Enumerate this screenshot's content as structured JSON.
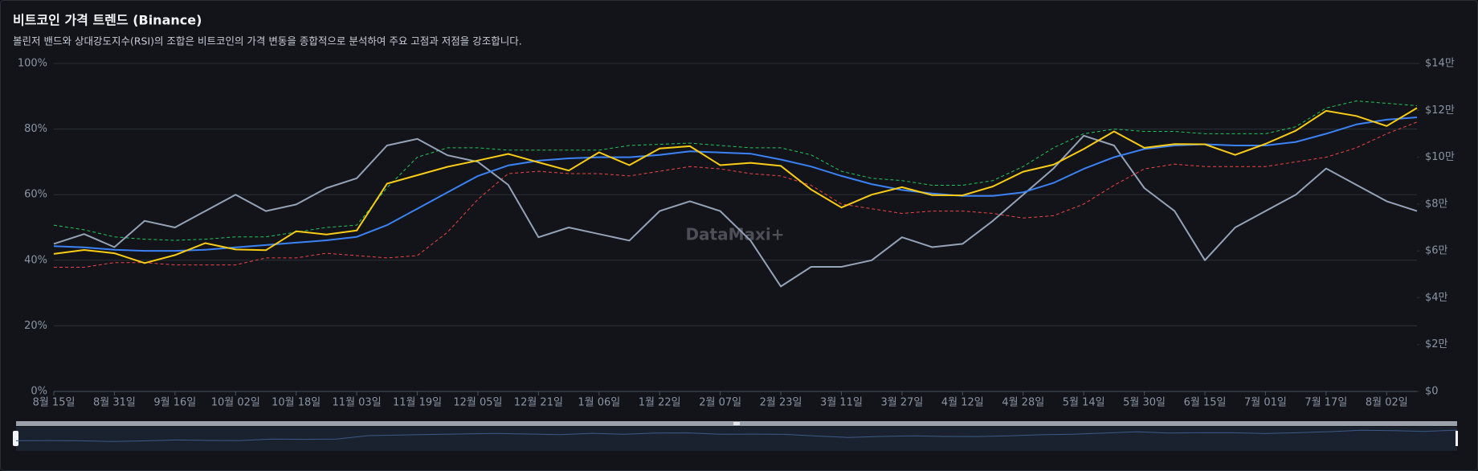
{
  "chart_data": {
    "type": "line",
    "title": "비트코인 가격 트렌드 (Binance)",
    "subtitle": "볼린저 밴드와 상대강도지수(RSI)의 조합은 비트코인의 가격 변동을 종합적으로 분석하여 주요 고점과 저점을 강조합니다.",
    "watermark": "DataMaxi+",
    "grid": true,
    "categories": [
      "8월 15일",
      null,
      "8월 31일",
      null,
      "9월 16일",
      null,
      "10월 02일",
      null,
      "10월 18일",
      null,
      "11월 03일",
      null,
      "11월 19일",
      null,
      "12월 05일",
      null,
      "12월 21일",
      null,
      "1월 06일",
      null,
      "1월 22일",
      null,
      "2월 07일",
      null,
      "2월 23일",
      null,
      "3월 11일",
      null,
      "3월 27일",
      null,
      "4월 12일",
      null,
      "4월 28일",
      null,
      "5월 14일",
      null,
      "5월 30일",
      null,
      "6월 15일",
      null,
      "7월 01일",
      null,
      "7월 17일",
      null,
      "8월 02일",
      null
    ],
    "ylim": [
      0,
      100
    ],
    "yticks": [
      {
        "value": 0,
        "label": "0%"
      },
      {
        "value": 20,
        "label": "20%"
      },
      {
        "value": 40,
        "label": "40%"
      },
      {
        "value": 60,
        "label": "60%"
      },
      {
        "value": 80,
        "label": "80%"
      },
      {
        "value": 100,
        "label": "100%"
      }
    ],
    "y2lim": [
      0,
      140000
    ],
    "y2ticks": [
      {
        "value": 0,
        "label": "$0"
      },
      {
        "value": 20000,
        "label": "$2만"
      },
      {
        "value": 40000,
        "label": "$4만"
      },
      {
        "value": 60000,
        "label": "$6만"
      },
      {
        "value": 80000,
        "label": "$8만"
      },
      {
        "value": 100000,
        "label": "$10만"
      },
      {
        "value": 120000,
        "label": "$12만"
      },
      {
        "value": 140000,
        "label": "$14만"
      }
    ],
    "series": [
      {
        "color": "#22c55e",
        "axis": "y2",
        "line_style": "dashed",
        "values": [
          71000,
          69000,
          66000,
          65000,
          64500,
          65000,
          66000,
          66000,
          68000,
          70000,
          71000,
          87000,
          100000,
          104000,
          104000,
          103000,
          103000,
          103000,
          103000,
          105000,
          105500,
          106000,
          105000,
          104000,
          104000,
          101000,
          94000,
          91000,
          90000,
          88000,
          88000,
          90000,
          96000,
          104000,
          110000,
          112000,
          111000,
          111000,
          110000,
          110000,
          110000,
          113000,
          121000,
          124000,
          123000,
          122000
        ]
      },
      {
        "color": "#ef4444",
        "axis": "y2",
        "line_style": "dashed",
        "values": [
          53000,
          53000,
          55000,
          55000,
          54000,
          54000,
          54000,
          57000,
          57000,
          59000,
          58000,
          57000,
          58000,
          68000,
          82000,
          93000,
          94000,
          93000,
          93000,
          92000,
          94000,
          96000,
          95000,
          93000,
          92000,
          88000,
          80000,
          78000,
          76000,
          77000,
          77000,
          76000,
          74000,
          75000,
          80000,
          88000,
          95000,
          97000,
          96000,
          96000,
          96000,
          98000,
          100000,
          104000,
          110000,
          115000
        ]
      },
      {
        "color": "#94a3b8",
        "axis": "y",
        "line_style": "solid",
        "values": [
          45,
          48,
          44,
          52,
          50,
          55,
          60,
          55,
          57,
          62,
          65,
          75,
          77,
          72,
          70,
          63,
          47,
          50,
          48,
          46,
          55,
          58,
          55,
          46,
          32,
          38,
          38,
          40,
          47,
          44,
          45,
          52,
          60,
          68,
          78,
          75,
          62,
          55,
          40,
          50,
          55,
          60,
          68,
          63,
          58,
          55
        ]
      },
      {
        "color": "#3b82f6",
        "axis": "y2",
        "line_style": "solid",
        "values": [
          62000,
          61500,
          60500,
          60000,
          60000,
          60500,
          61500,
          62500,
          63500,
          64500,
          66000,
          71000,
          78000,
          85000,
          92000,
          96500,
          98500,
          99500,
          100000,
          100000,
          101000,
          102500,
          102000,
          101500,
          99000,
          96000,
          92000,
          88500,
          86000,
          84500,
          83500,
          83500,
          85000,
          89000,
          95000,
          100000,
          103500,
          105000,
          105500,
          105000,
          105000,
          106500,
          110000,
          114000,
          116000,
          117000
        ]
      },
      {
        "color": "#facc15",
        "axis": "y2",
        "line_style": "solid",
        "values": [
          58700,
          60400,
          59000,
          54800,
          58200,
          63300,
          60600,
          60300,
          68400,
          67000,
          68700,
          88700,
          92300,
          95900,
          98600,
          101400,
          97800,
          94300,
          102100,
          96600,
          103700,
          104700,
          96600,
          97600,
          96300,
          86200,
          78500,
          84000,
          87200,
          83800,
          83700,
          87500,
          93800,
          96800,
          103500,
          111000,
          104000,
          105600,
          105500,
          101000,
          105700,
          111300,
          119800,
          117600,
          113300,
          121000
        ]
      }
    ]
  }
}
